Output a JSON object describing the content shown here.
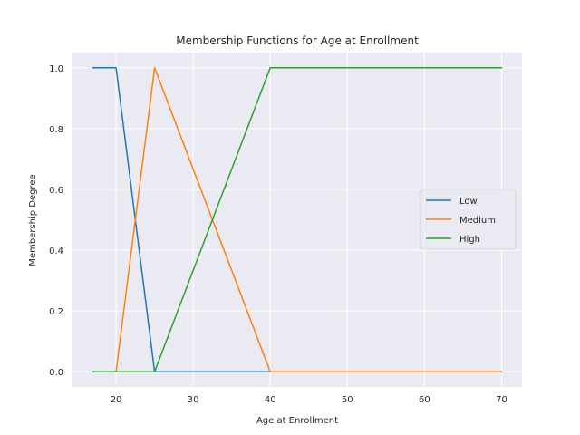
{
  "chart_data": {
    "type": "line",
    "title": "Membership Functions for Age at Enrollment",
    "xlabel": "Age at Enrollment",
    "ylabel": "Membership Degree",
    "xlim": [
      14.35,
      72.65
    ],
    "ylim": [
      -0.05,
      1.05
    ],
    "xticks": [
      20,
      30,
      40,
      50,
      60,
      70
    ],
    "yticks": [
      0.0,
      0.2,
      0.4,
      0.6,
      0.8,
      1.0
    ],
    "grid": true,
    "legend_position": "center-right",
    "series": [
      {
        "name": "Low",
        "color": "#1f77b4",
        "x": [
          17,
          20,
          25,
          40,
          70
        ],
        "y": [
          1,
          1,
          0,
          0,
          0
        ]
      },
      {
        "name": "Medium",
        "color": "#ff7f0e",
        "x": [
          17,
          20,
          25,
          40,
          70
        ],
        "y": [
          0,
          0,
          1,
          0,
          0
        ]
      },
      {
        "name": "High",
        "color": "#2ca02c",
        "x": [
          17,
          25,
          40,
          70
        ],
        "y": [
          0,
          0,
          1,
          1
        ]
      }
    ]
  },
  "style": {
    "plot_background": "#eaeaf2",
    "grid_color": "#ffffff",
    "text_color": "#262626"
  }
}
